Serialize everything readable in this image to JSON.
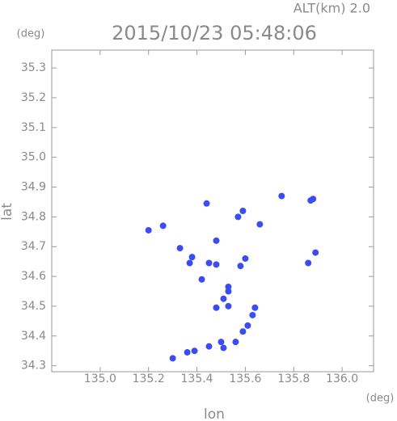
{
  "chart_data": {
    "type": "scatter",
    "title": "2015/10/23 05:48:06",
    "altitude": "ALT(km) 2.0",
    "x_label": "lon",
    "y_label": "lat",
    "x_unit": "(deg)",
    "y_unit": "(deg)",
    "xlim": [
      134.8,
      136.13
    ],
    "ylim": [
      34.28,
      35.36
    ],
    "xticks": [
      {
        "value": 135,
        "label": "135.0"
      },
      135.2,
      135.4,
      135.6,
      135.8,
      {
        "value": 136,
        "label": "136.0"
      }
    ],
    "yticks": [
      34.3,
      34.4,
      34.5,
      34.6,
      34.7,
      34.8,
      34.9,
      {
        "value": 35,
        "label": "35.0"
      },
      35.1,
      35.2,
      35.3
    ],
    "grid": false,
    "color": "#3b4cf0",
    "x": [
      135.2,
      135.26,
      135.33,
      135.38,
      135.37,
      135.45,
      135.48,
      135.44,
      135.48,
      135.57,
      135.59,
      135.66,
      135.75,
      135.87,
      135.88,
      135.89,
      135.86,
      135.6,
      135.58,
      135.42,
      135.53,
      135.51,
      135.53,
      135.48,
      135.64,
      135.63,
      135.59,
      135.61,
      135.56,
      135.5,
      135.45,
      135.39,
      135.36,
      135.3,
      135.51,
      135.53
    ],
    "y": [
      34.755,
      34.77,
      34.695,
      34.665,
      34.645,
      34.645,
      34.64,
      34.845,
      34.72,
      34.8,
      34.82,
      34.775,
      34.87,
      34.855,
      34.86,
      34.68,
      34.645,
      34.66,
      34.635,
      34.59,
      34.565,
      34.525,
      34.5,
      34.495,
      34.495,
      34.47,
      34.415,
      34.435,
      34.38,
      34.38,
      34.365,
      34.35,
      34.345,
      34.325,
      34.36,
      34.55
    ]
  }
}
